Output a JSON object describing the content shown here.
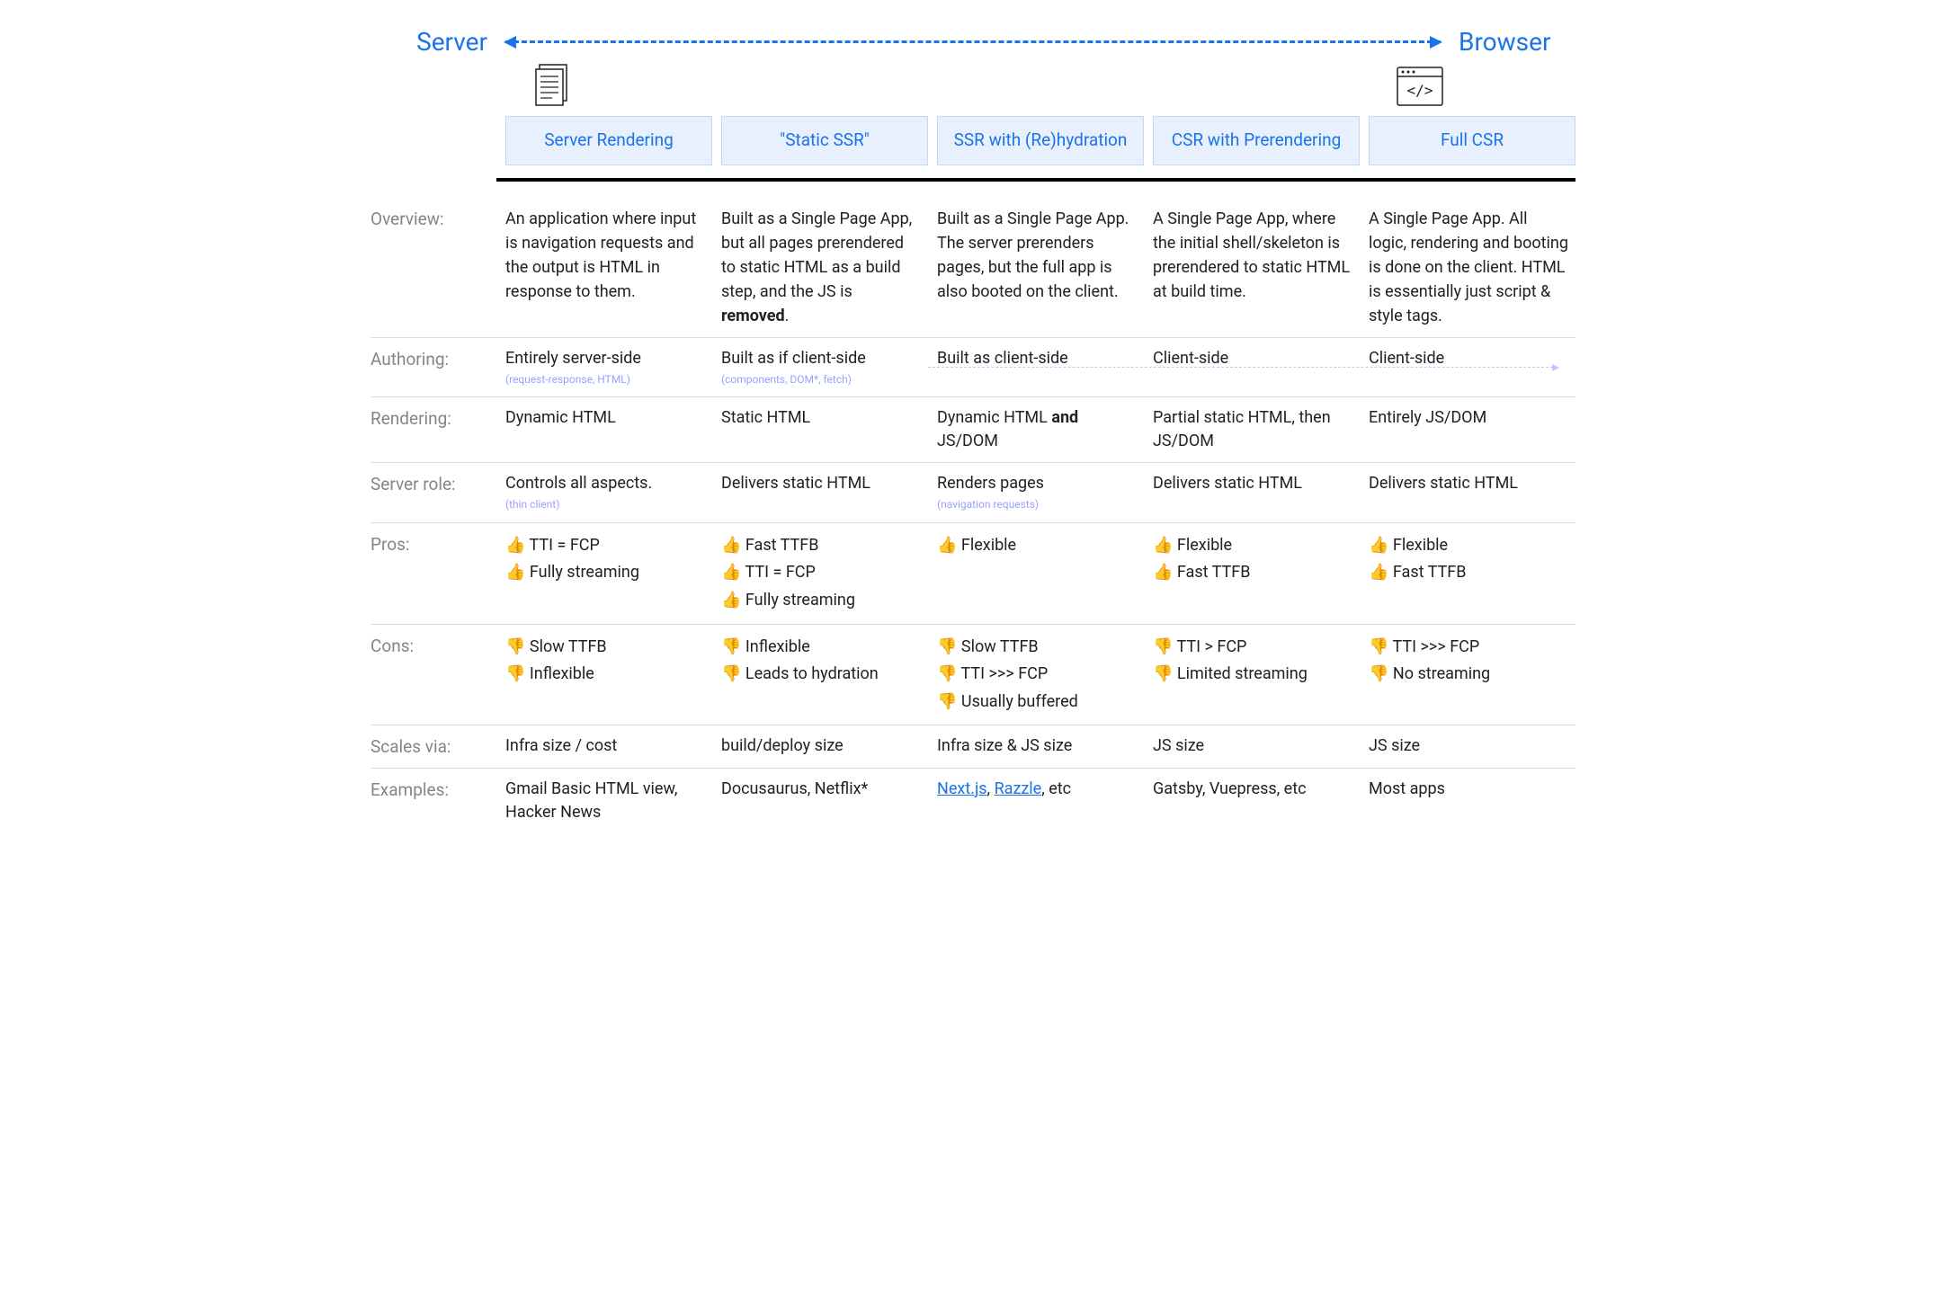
{
  "header": {
    "left": "Server",
    "right": "Browser",
    "arrow_color": "#1a73e8"
  },
  "columns": [
    "Server Rendering",
    "\"Static SSR\"",
    "SSR with (Re)hydration",
    "CSR with Prerendering",
    "Full CSR"
  ],
  "row_labels": {
    "overview": "Overview:",
    "authoring": "Authoring:",
    "rendering": "Rendering:",
    "server_role": "Server role:",
    "pros": "Pros:",
    "cons": "Cons:",
    "scales": "Scales via:",
    "examples": "Examples:"
  },
  "overview": [
    "An application where input is navigation requests and the output is HTML in response to them.",
    "Built as a Single Page App, but all pages prerendered to static HTML as a build step, and the JS is ",
    "Built as a Single Page App. The server prerenders pages, but the full app is also booted on the client.",
    "A Single Page App, where the initial shell/skeleton is prerendered to static HTML at build time.",
    "A Single Page App. All logic, rendering and booting is done on the client. HTML is essentially just script & style tags."
  ],
  "overview_col1_bold": "removed",
  "authoring": {
    "text": [
      "Entirely server-side",
      "Built as if client-side",
      "Built as client-side",
      "Client-side",
      "Client-side"
    ],
    "sub": [
      "(request-response, HTML)",
      "(components, DOM*, fetch)",
      "",
      "",
      ""
    ]
  },
  "rendering": [
    "Dynamic HTML",
    "Static HTML",
    "Dynamic HTML |B|and|/B| JS/DOM",
    "Partial static HTML, then JS/DOM",
    "Entirely JS/DOM"
  ],
  "server_role": {
    "text": [
      "Controls all aspects.",
      "Delivers static HTML",
      "Renders pages",
      "Delivers static HTML",
      "Delivers static HTML"
    ],
    "sub": [
      "(thin client)",
      "",
      "(navigation requests)",
      "",
      ""
    ]
  },
  "pros": [
    [
      "TTI = FCP",
      "Fully streaming"
    ],
    [
      "Fast TTFB",
      "TTI = FCP",
      "Fully streaming"
    ],
    [
      "Flexible"
    ],
    [
      "Flexible",
      "Fast TTFB"
    ],
    [
      "Flexible",
      "Fast TTFB"
    ]
  ],
  "cons": [
    [
      "Slow TTFB",
      "Inflexible"
    ],
    [
      "Inflexible",
      "Leads to hydration"
    ],
    [
      "Slow TTFB",
      "TTI >>> FCP",
      "Usually buffered"
    ],
    [
      "TTI > FCP",
      "Limited streaming"
    ],
    [
      "TTI >>> FCP",
      "No streaming"
    ]
  ],
  "scales": [
    "Infra size / cost",
    "build/deploy size",
    "Infra size & JS size",
    "JS size",
    "JS size"
  ],
  "examples": [
    {
      "text": "Gmail Basic HTML view, Hacker News"
    },
    {
      "text": "Docusaurus, Netflix*"
    },
    {
      "links": [
        "Next.js",
        "Razzle"
      ],
      "suffix": ", etc"
    },
    {
      "text": "Gatsby, Vuepress, etc"
    },
    {
      "text": "Most apps"
    }
  ],
  "styling": {
    "header_bg": "#e8f0fe",
    "header_border": "#c6d9f4",
    "blue": "#1a73e8",
    "label_color": "#80868b",
    "sub_color": "#9aa0ff",
    "border_color": "#dadce0",
    "thick_line": "#000000",
    "faint_dash": "#c7c2ff",
    "font_size_header": 28,
    "font_size_colhead": 19,
    "font_size_label": 19,
    "font_size_cell": 18,
    "font_size_sub": 12,
    "grid_cols": "140px repeat(5, 1fr)"
  }
}
